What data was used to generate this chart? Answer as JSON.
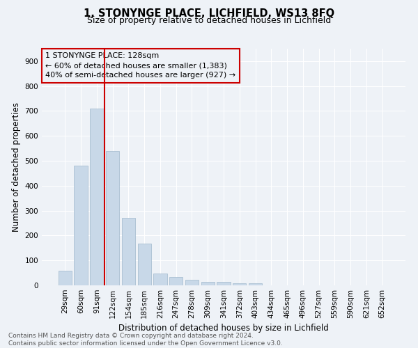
{
  "title1": "1, STONYNGE PLACE, LICHFIELD, WS13 8FQ",
  "title2": "Size of property relative to detached houses in Lichfield",
  "xlabel": "Distribution of detached houses by size in Lichfield",
  "ylabel": "Number of detached properties",
  "categories": [
    "29sqm",
    "60sqm",
    "91sqm",
    "122sqm",
    "154sqm",
    "185sqm",
    "216sqm",
    "247sqm",
    "278sqm",
    "309sqm",
    "341sqm",
    "372sqm",
    "403sqm",
    "434sqm",
    "465sqm",
    "496sqm",
    "527sqm",
    "559sqm",
    "590sqm",
    "621sqm",
    "652sqm"
  ],
  "values": [
    60,
    480,
    710,
    540,
    270,
    168,
    48,
    33,
    22,
    15,
    15,
    8,
    8,
    0,
    0,
    0,
    0,
    0,
    0,
    0,
    0
  ],
  "bar_color": "#c8d8e8",
  "bar_edge_color": "#a0b8cc",
  "vline_color": "#cc0000",
  "vline_pos": 3.0,
  "annotation_lines": [
    "1 STONYNGE PLACE: 128sqm",
    "← 60% of detached houses are smaller (1,383)",
    "40% of semi-detached houses are larger (927) →"
  ],
  "annotation_box_color": "#cc0000",
  "ylim": [
    0,
    950
  ],
  "yticks": [
    0,
    100,
    200,
    300,
    400,
    500,
    600,
    700,
    800,
    900
  ],
  "footer": "Contains HM Land Registry data © Crown copyright and database right 2024.\nContains public sector information licensed under the Open Government Licence v3.0.",
  "bg_color": "#eef2f7",
  "grid_color": "#ffffff"
}
